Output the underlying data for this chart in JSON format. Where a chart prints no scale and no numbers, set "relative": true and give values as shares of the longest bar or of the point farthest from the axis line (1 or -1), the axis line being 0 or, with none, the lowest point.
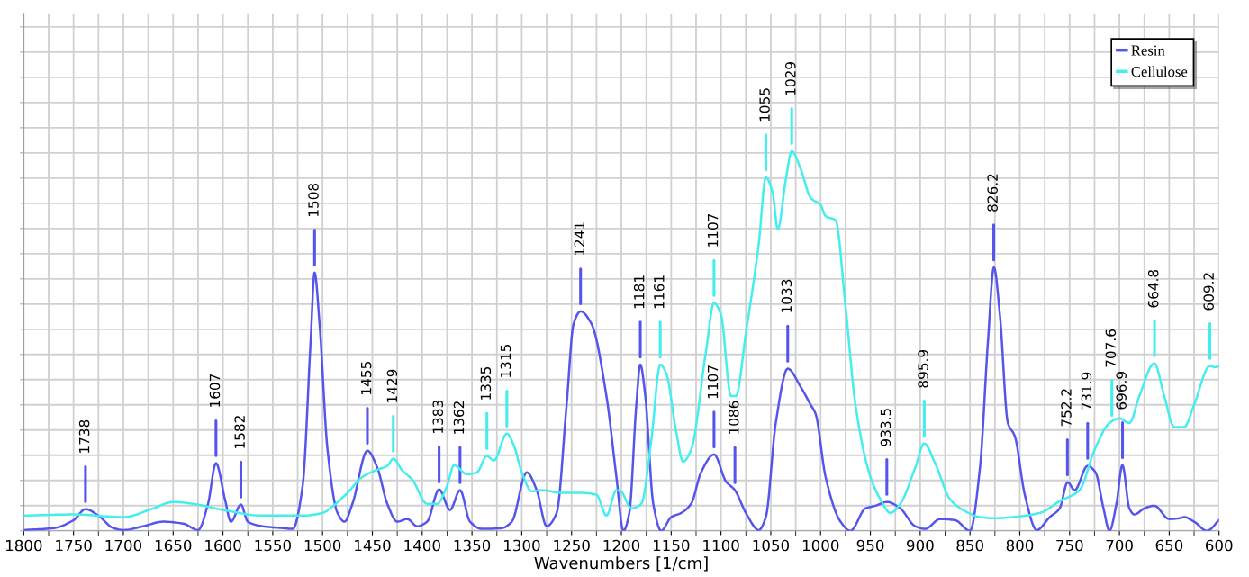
{
  "chart_data": {
    "type": "line",
    "relative": true,
    "xlabel": "Wavenumbers [1/cm]",
    "grid": true,
    "legend": "top right",
    "marker": "none",
    "line_style": "solid",
    "xlim": [
      1800,
      600
    ],
    "xticks": [
      1800,
      1750,
      1700,
      1650,
      1600,
      1550,
      1500,
      1450,
      1400,
      1350,
      1300,
      1250,
      1200,
      1150,
      1100,
      1050,
      1000,
      950,
      900,
      850,
      800,
      750,
      700,
      650,
      600
    ],
    "series": [
      {
        "name": "Resin",
        "color": "#5555ee",
        "x": [
          1800,
          1770,
          1750,
          1738,
          1725,
          1710,
          1700,
          1680,
          1660,
          1640,
          1625,
          1615,
          1607,
          1598,
          1592,
          1582,
          1575,
          1560,
          1540,
          1530,
          1520,
          1512,
          1508,
          1503,
          1495,
          1485,
          1478,
          1470,
          1455,
          1445,
          1435,
          1425,
          1415,
          1405,
          1395,
          1383,
          1372,
          1362,
          1352,
          1340,
          1320,
          1310,
          1295,
          1285,
          1275,
          1265,
          1255,
          1248,
          1241,
          1230,
          1215,
          1205,
          1198,
          1192,
          1185,
          1181,
          1176,
          1168,
          1160,
          1150,
          1140,
          1130,
          1120,
          1107,
          1095,
          1086,
          1075,
          1062,
          1055,
          1045,
          1033,
          1020,
          1010,
          1005,
          995,
          980,
          970,
          955,
          945,
          933,
          920,
          905,
          895,
          880,
          865,
          850,
          840,
          832,
          826,
          820,
          812,
          805,
          795,
          783,
          770,
          760,
          752,
          745,
          732,
          724,
          716,
          710,
          703,
          697,
          690,
          685,
          675,
          665,
          650,
          640,
          635,
          625,
          612,
          600
        ],
        "values": [
          0.002,
          0.007,
          0.028,
          0.057,
          0.04,
          0.007,
          0.002,
          0.012,
          0.024,
          0.019,
          0.002,
          0.071,
          0.178,
          0.083,
          0.024,
          0.069,
          0.024,
          0.012,
          0.007,
          0.005,
          0.118,
          0.498,
          0.68,
          0.545,
          0.213,
          0.047,
          0.024,
          0.071,
          0.211,
          0.166,
          0.071,
          0.024,
          0.031,
          0.012,
          0.024,
          0.109,
          0.055,
          0.107,
          0.024,
          0.005,
          0.007,
          0.024,
          0.154,
          0.107,
          0.012,
          0.047,
          0.332,
          0.545,
          0.578,
          0.545,
          0.355,
          0.142,
          0,
          0.047,
          0.332,
          0.438,
          0.355,
          0.071,
          0,
          0.036,
          0.047,
          0.071,
          0.154,
          0.201,
          0.13,
          0.107,
          0.047,
          0.002,
          0.036,
          0.284,
          0.427,
          0.379,
          0.332,
          0.308,
          0.142,
          0.024,
          0,
          0.059,
          0.066,
          0.076,
          0.059,
          0.012,
          0.005,
          0.031,
          0.028,
          0,
          0.166,
          0.498,
          0.694,
          0.569,
          0.284,
          0.249,
          0.095,
          0.002,
          0.036,
          0.059,
          0.128,
          0.107,
          0.171,
          0.154,
          0.059,
          0,
          0.071,
          0.173,
          0.059,
          0.043,
          0.059,
          0.066,
          0.031,
          0.033,
          0.036,
          0.024,
          0,
          0.028
        ]
      },
      {
        "name": "Cellulose",
        "color": "#44eeee",
        "x": [
          1800,
          1750,
          1700,
          1670,
          1650,
          1630,
          1600,
          1560,
          1520,
          1500,
          1490,
          1475,
          1460,
          1445,
          1435,
          1429,
          1420,
          1410,
          1395,
          1385,
          1375,
          1368,
          1355,
          1345,
          1335,
          1328,
          1315,
          1308,
          1300,
          1290,
          1280,
          1260,
          1240,
          1225,
          1215,
          1205,
          1200,
          1190,
          1180,
          1170,
          1161,
          1155,
          1145,
          1138,
          1130,
          1115,
          1107,
          1100,
          1090,
          1085,
          1075,
          1062,
          1055,
          1048,
          1043,
          1035,
          1029,
          1020,
          1010,
          1000,
          995,
          985,
          975,
          965,
          950,
          940,
          930,
          920,
          905,
          896,
          885,
          870,
          855,
          840,
          825,
          800,
          780,
          760,
          740,
          725,
          710,
          700,
          690,
          680,
          665,
          655,
          645,
          635,
          625,
          609.2,
          604,
          600
        ],
        "values": [
          0.04,
          0.043,
          0.036,
          0.059,
          0.076,
          0.071,
          0.055,
          0.04,
          0.04,
          0.047,
          0.064,
          0.1,
          0.142,
          0.161,
          0.171,
          0.19,
          0.159,
          0.135,
          0.071,
          0.071,
          0.118,
          0.173,
          0.149,
          0.154,
          0.197,
          0.185,
          0.256,
          0.225,
          0.154,
          0.104,
          0.107,
          0.1,
          0.1,
          0.095,
          0.04,
          0.107,
          0.102,
          0.059,
          0.071,
          0.237,
          0.438,
          0.415,
          0.261,
          0.182,
          0.213,
          0.474,
          0.6,
          0.569,
          0.355,
          0.355,
          0.521,
          0.758,
          0.931,
          0.889,
          0.794,
          0.924,
          1,
          0.953,
          0.877,
          0.858,
          0.829,
          0.818,
          0.592,
          0.332,
          0.142,
          0.083,
          0.047,
          0.071,
          0.166,
          0.23,
          0.178,
          0.083,
          0.052,
          0.036,
          0.033,
          0.038,
          0.047,
          0.078,
          0.107,
          0.213,
          0.284,
          0.296,
          0.284,
          0.355,
          0.441,
          0.355,
          0.273,
          0.273,
          0.332,
          0.434,
          0.431,
          0.434
        ]
      }
    ],
    "annotations": [
      {
        "text": "1738",
        "x": 1738,
        "y": 0.057
      },
      {
        "text": "1607",
        "x": 1607,
        "y": 0.178
      },
      {
        "text": "1582",
        "x": 1582,
        "y": 0.069
      },
      {
        "text": "1508",
        "x": 1508,
        "y": 0.68
      },
      {
        "text": "1455",
        "x": 1455,
        "y": 0.211
      },
      {
        "text": "1429",
        "x": 1429,
        "y": 0.19
      },
      {
        "text": "1383",
        "x": 1383,
        "y": 0.109
      },
      {
        "text": "1362",
        "x": 1362,
        "y": 0.107
      },
      {
        "text": "1335",
        "x": 1335,
        "y": 0.197
      },
      {
        "text": "1315",
        "x": 1315,
        "y": 0.256
      },
      {
        "text": "1241",
        "x": 1241,
        "y": 0.578
      },
      {
        "text": "1181",
        "x": 1181,
        "y": 0.438
      },
      {
        "text": "1161",
        "x": 1161,
        "y": 0.438
      },
      {
        "text": "1107",
        "x": 1107,
        "y": 0.6
      },
      {
        "text": "1107",
        "x": 1107,
        "y": 0.201
      },
      {
        "text": "1086",
        "x": 1086,
        "y": 0.107
      },
      {
        "text": "1055",
        "x": 1055,
        "y": 0.931
      },
      {
        "text": "1029",
        "x": 1029,
        "y": 1
      },
      {
        "text": "1033",
        "x": 1033,
        "y": 0.427
      },
      {
        "text": "933.5",
        "x": 933.5,
        "y": 0.076
      },
      {
        "text": "895.9",
        "x": 895.9,
        "y": 0.23
      },
      {
        "text": "826.2",
        "x": 826.2,
        "y": 0.694
      },
      {
        "text": "752.2",
        "x": 752.2,
        "y": 0.128
      },
      {
        "text": "731.9",
        "x": 731.9,
        "y": 0.171
      },
      {
        "text": "707.6",
        "x": 707.6,
        "y": 0.284
      },
      {
        "text": "696.9",
        "x": 696.9,
        "y": 0.173
      },
      {
        "text": "664.8",
        "x": 664.8,
        "y": 0.441
      },
      {
        "text": "609.2",
        "x": 609.2,
        "y": 0.434
      }
    ]
  }
}
